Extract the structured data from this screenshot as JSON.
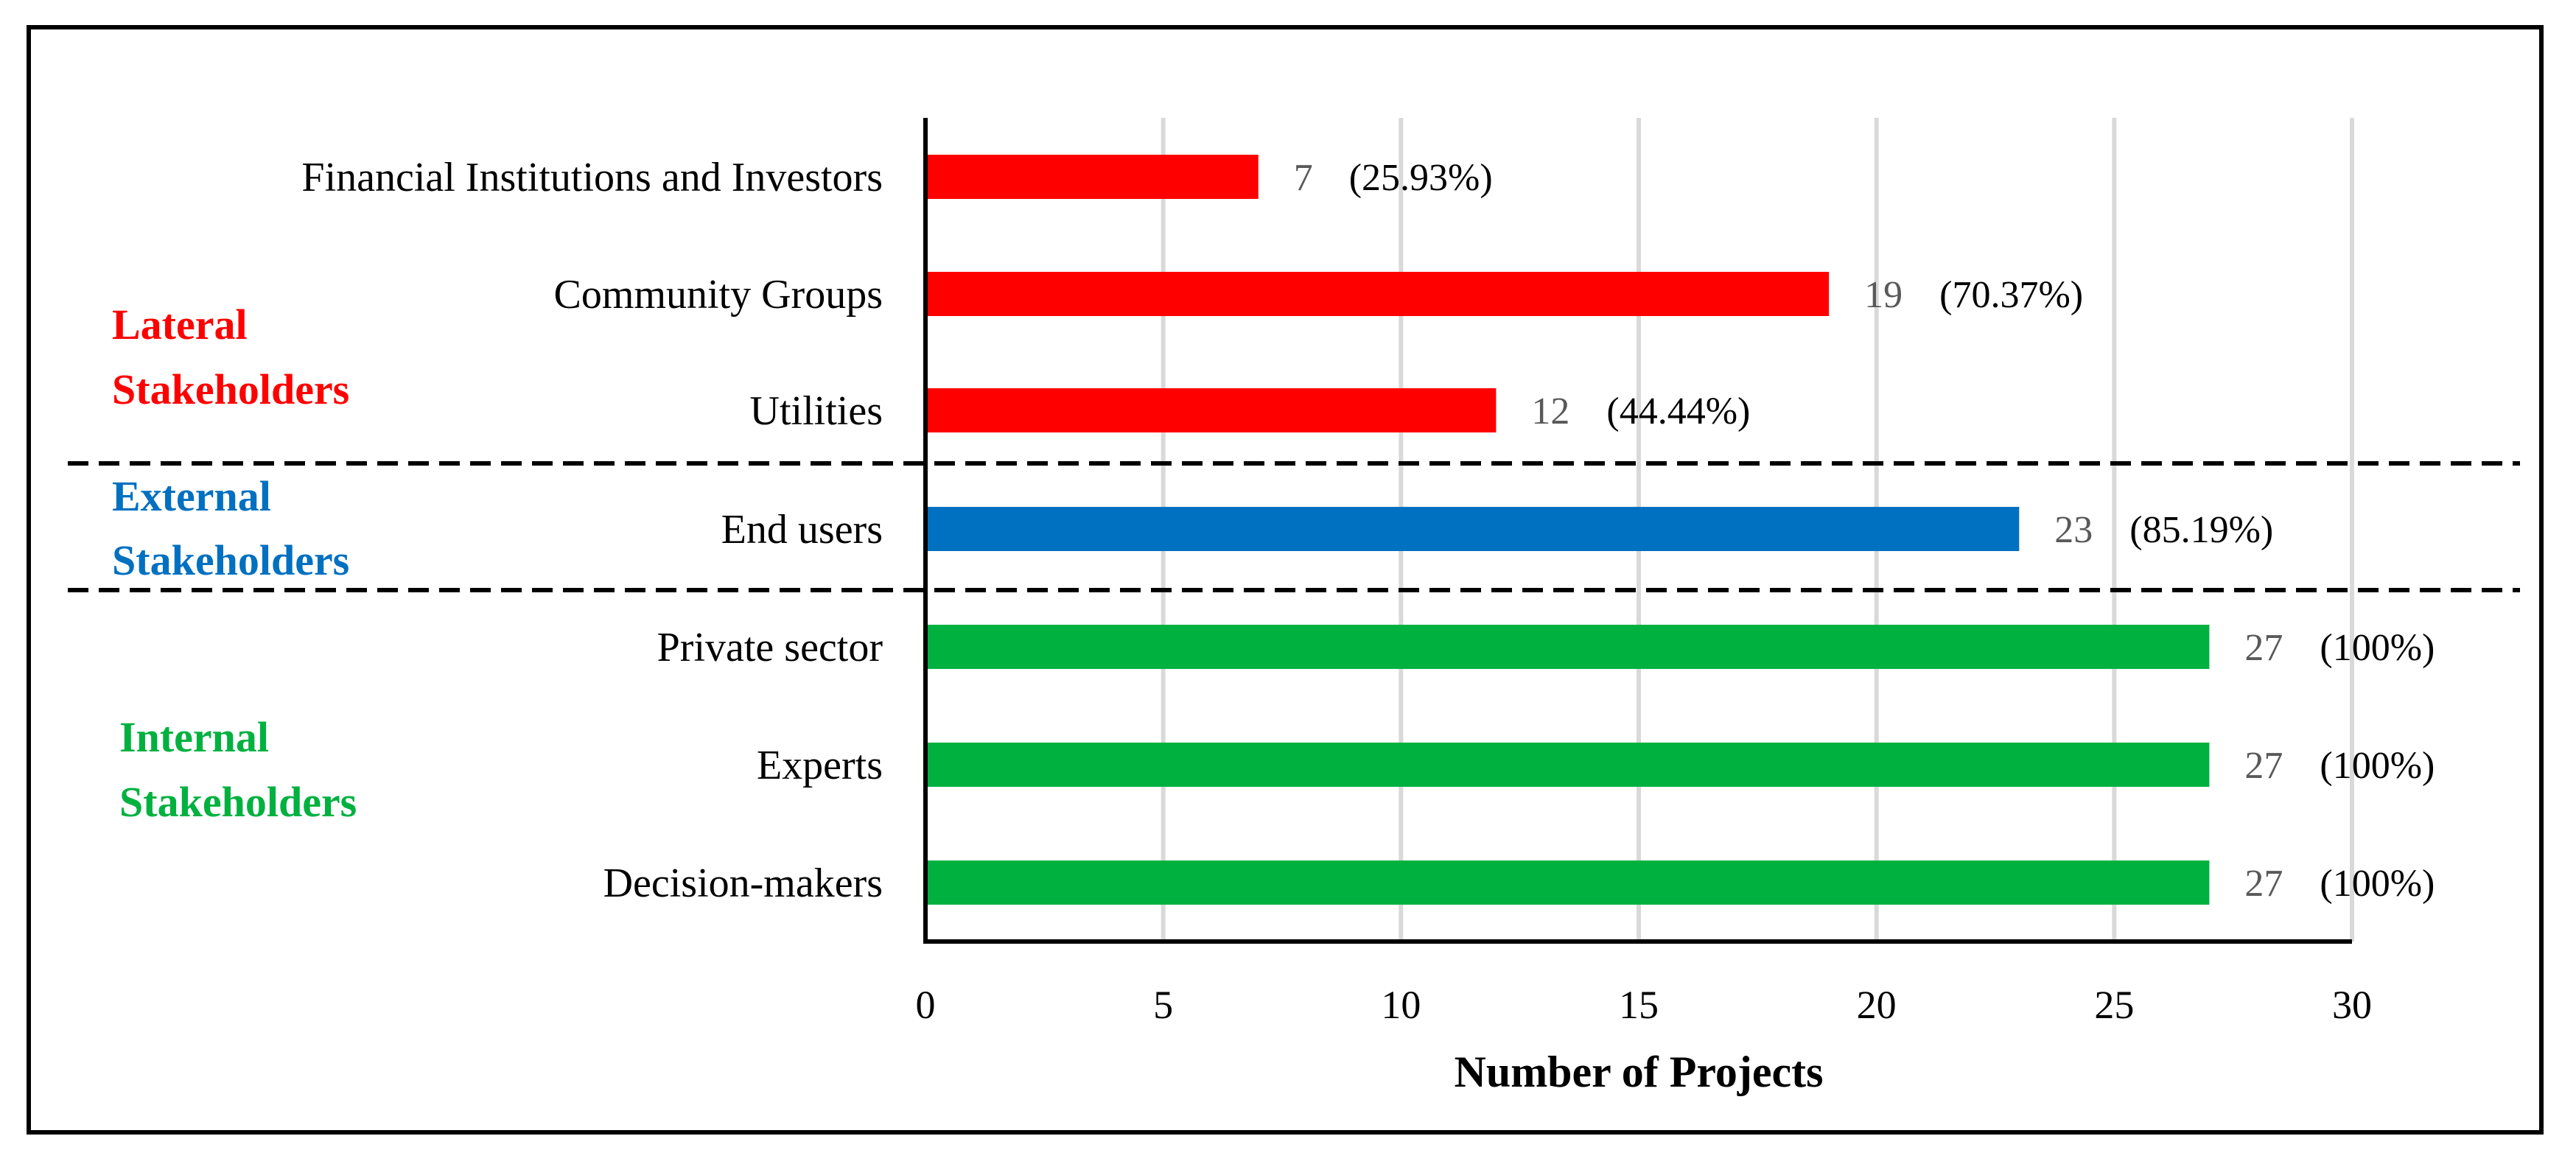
{
  "chart_data": {
    "type": "bar",
    "orientation": "horizontal",
    "title": "",
    "xlabel": "Number of Projects",
    "ylabel": "",
    "xlim": [
      0,
      30
    ],
    "xticks": [
      0,
      5,
      10,
      15,
      20,
      25,
      30
    ],
    "grid": true,
    "categories": [
      "Financial Institutions and Investors",
      "Community Groups",
      "Utilities",
      "End users",
      "Private sector",
      "Experts",
      "Decision-makers"
    ],
    "values": [
      7,
      19,
      12,
      23,
      27,
      27,
      27
    ],
    "percent_labels": [
      "(25.93%)",
      "(70.37%)",
      "(44.44%)",
      "(85.19%)",
      "(100%)",
      "(100%)",
      "(100%)"
    ],
    "groups": [
      {
        "name_lines": [
          "Lateral",
          "Stakeholders"
        ],
        "color": "#ff0000",
        "categories": [
          "Financial Institutions and Investors",
          "Community Groups",
          "Utilities"
        ]
      },
      {
        "name_lines": [
          "External",
          "Stakeholders"
        ],
        "color": "#0070c0",
        "categories": [
          "End users"
        ]
      },
      {
        "name_lines": [
          "Internal",
          "Stakeholders"
        ],
        "color": "#00b140",
        "categories": [
          "Private sector",
          "Experts",
          "Decision-makers"
        ]
      }
    ]
  }
}
